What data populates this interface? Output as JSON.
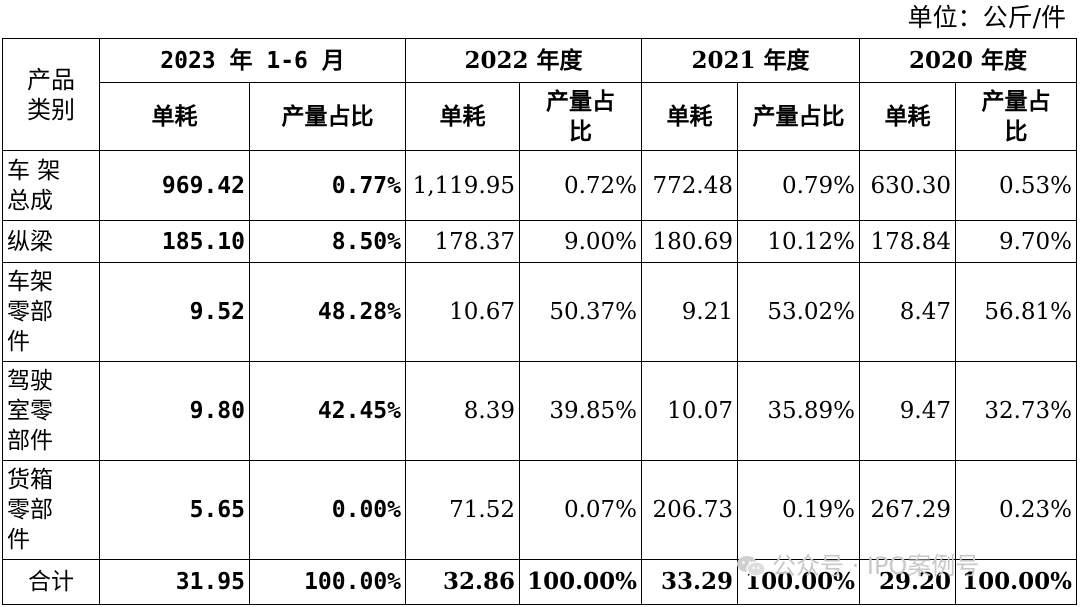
{
  "unit_label": "单位：公斤/件",
  "header": {
    "category": "产品类别",
    "periods": [
      "2023 年 1-6 月",
      "2022 年度",
      "2021 年度",
      "2020 年度"
    ],
    "sub_unit": "单耗",
    "sub_ratio": "产量占比"
  },
  "rows": [
    {
      "category": "车 架总成",
      "values": [
        "969.42",
        "0.77%",
        "1,119.95",
        "0.72%",
        "772.48",
        "0.79%",
        "630.30",
        "0.53%"
      ]
    },
    {
      "category": "纵梁",
      "values": [
        "185.10",
        "8.50%",
        "178.37",
        "9.00%",
        "180.69",
        "10.12%",
        "178.84",
        "9.70%"
      ]
    },
    {
      "category": "车架零部件",
      "values": [
        "9.52",
        "48.28%",
        "10.67",
        "50.37%",
        "9.21",
        "53.02%",
        "8.47",
        "56.81%"
      ]
    },
    {
      "category": "驾驶室零部件",
      "values": [
        "9.80",
        "42.45%",
        "8.39",
        "39.85%",
        "10.07",
        "35.89%",
        "9.47",
        "32.73%"
      ]
    },
    {
      "category": "货箱零部件",
      "values": [
        "5.65",
        "0.00%",
        "71.52",
        "0.07%",
        "206.73",
        "0.19%",
        "267.29",
        "0.23%"
      ]
    }
  ],
  "total": {
    "category": "合计",
    "values": [
      "31.95",
      "100.00%",
      "32.86",
      "100.00%",
      "33.29",
      "100.00%",
      "29.20",
      "100.00%"
    ]
  },
  "watermark": "公众号 · IPO案例号",
  "watermark_icon": "wechat-icon"
}
